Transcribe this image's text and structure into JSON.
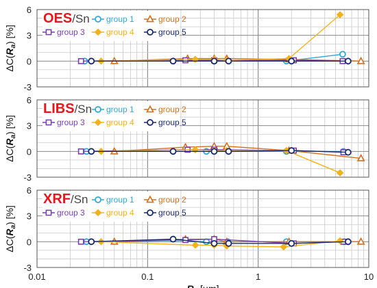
{
  "chart_data": {
    "type": "scatter",
    "x_scale": "log",
    "xlim": [
      0.01,
      10
    ],
    "x_ticks": [
      "0.01",
      "0.1",
      "1",
      "10"
    ],
    "xlabel": "R",
    "xlabel_sub": "a",
    "xlabel_unit": "[µm]",
    "ylim": [
      -3,
      6
    ],
    "y_ticks": [
      "6",
      "3",
      "0",
      "-3"
    ],
    "ylabel_delta": "ΔC(",
    "ylabel_r": "R",
    "ylabel_sub": "a",
    "ylabel_tail": ") [%]",
    "grid": true,
    "legend_location": "top",
    "series_styles": [
      {
        "name": "group 1",
        "color": "#2ea8d8",
        "marker": "circle"
      },
      {
        "name": "group 2",
        "color": "#d07020",
        "marker": "triangle"
      },
      {
        "name": "group 3",
        "color": "#7a3fb0",
        "marker": "square"
      },
      {
        "name": "group 4",
        "color": "#f2b21a",
        "marker": "diamond"
      },
      {
        "name": "group 5",
        "color": "#1a2a6c",
        "marker": "circle"
      }
    ],
    "panels": [
      {
        "title_bold": "OES",
        "title_rest": "/Sn",
        "series": [
          {
            "name": "group 1",
            "x": [
              0.027,
              0.4,
              1.8,
              5.8
            ],
            "y": [
              0,
              0,
              0,
              0.8
            ]
          },
          {
            "name": "group 2",
            "x": [
              0.05,
              0.23,
              0.4,
              0.52,
              1.9,
              8.5
            ],
            "y": [
              0,
              0.3,
              0.3,
              0.3,
              0.2,
              0
            ]
          },
          {
            "name": "group 3",
            "x": [
              0.025,
              0.22,
              0.4,
              2.1,
              5.8
            ],
            "y": [
              0,
              0.1,
              0.1,
              0.1,
              0
            ]
          },
          {
            "name": "group 4",
            "x": [
              0.038,
              0.27,
              0.4,
              0.52,
              1.9,
              5.5
            ],
            "y": [
              0,
              0.2,
              0.2,
              0.1,
              0.3,
              5.4
            ]
          },
          {
            "name": "group 5",
            "x": [
              0.031,
              0.17,
              0.4,
              0.54,
              2.0,
              6.5
            ],
            "y": [
              0,
              0,
              0,
              0,
              0,
              0
            ]
          }
        ]
      },
      {
        "title_bold": "LIBS",
        "title_rest": "/Sn",
        "series": [
          {
            "name": "group 1",
            "x": [
              0.028,
              0.34,
              1.8,
              5.9
            ],
            "y": [
              0,
              0,
              0,
              0
            ]
          },
          {
            "name": "group 2",
            "x": [
              0.05,
              0.22,
              0.4,
              0.52,
              1.9,
              8.5
            ],
            "y": [
              0,
              0.5,
              0.6,
              0.6,
              0.1,
              -0.8
            ]
          },
          {
            "name": "group 3",
            "x": [
              0.025,
              0.23,
              0.4,
              2.1,
              5.9
            ],
            "y": [
              0,
              0.2,
              0.2,
              0.1,
              -0.1
            ]
          },
          {
            "name": "group 4",
            "x": [
              0.038,
              0.27,
              0.4,
              0.52,
              1.8,
              5.5
            ],
            "y": [
              0,
              0.2,
              0.1,
              0.1,
              0.1,
              -2.5
            ]
          },
          {
            "name": "group 5",
            "x": [
              0.031,
              0.17,
              0.4,
              0.54,
              2.0,
              6.5
            ],
            "y": [
              0,
              0,
              0,
              0,
              0.1,
              -0.1
            ]
          }
        ]
      },
      {
        "title_bold": "XRF",
        "title_rest": "/Sn",
        "series": [
          {
            "name": "group 1",
            "x": [
              0.028,
              0.34,
              0.53,
              1.8,
              6.0
            ],
            "y": [
              0,
              0,
              0,
              0,
              0
            ]
          },
          {
            "name": "group 2",
            "x": [
              0.05,
              0.22,
              0.4,
              0.52,
              1.9,
              8.5
            ],
            "y": [
              0,
              0.3,
              0.3,
              0,
              0,
              0
            ]
          },
          {
            "name": "group 3",
            "x": [
              0.025,
              0.22,
              0.4,
              2.1,
              5.9
            ],
            "y": [
              0,
              0.2,
              0.3,
              -0.2,
              0
            ]
          },
          {
            "name": "group 4",
            "x": [
              0.038,
              0.27,
              0.4,
              0.52,
              1.7,
              5.5
            ],
            "y": [
              0,
              -0.4,
              -0.4,
              -0.5,
              -0.6,
              0.1
            ]
          },
          {
            "name": "group 5",
            "x": [
              0.031,
              0.17,
              0.4,
              0.54,
              2.0,
              6.5
            ],
            "y": [
              0,
              0.3,
              -0.2,
              -0.2,
              -0.2,
              0
            ]
          }
        ]
      }
    ]
  }
}
